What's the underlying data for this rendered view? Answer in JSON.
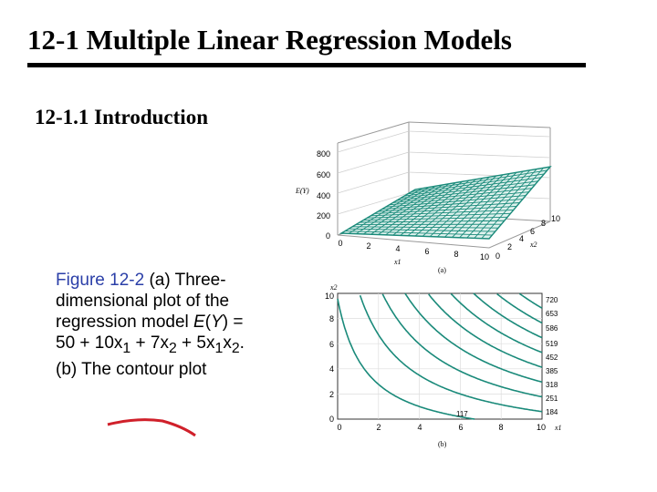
{
  "slide": {
    "title": "12-1 Multiple Linear Regression Models",
    "subtitle": "12-1.1 Introduction"
  },
  "caption": {
    "label": "Figure 12-2",
    "part_a": " (a) Three-dimensional plot of the regression model ",
    "ey": "E",
    "y": "Y",
    "eq1": ") = 50 + 10x",
    "s1": "1",
    "plus": " + 7x",
    "s2": "2",
    "eq2": " + 5x",
    "s3": "1",
    "x2": "x",
    "s4": "2",
    "tail": ". (b) The contour plot"
  },
  "figure_a": {
    "label": "(a)",
    "zlabel": "E(Y)",
    "xlabel": "x1",
    "ylabel": "x2",
    "z_ticks": [
      "800",
      "600",
      "400",
      "200",
      "0"
    ],
    "x_ticks": [
      "0",
      "2",
      "4",
      "6",
      "8",
      "10"
    ],
    "y_ticks": [
      "0",
      "2",
      "4",
      "6",
      "8",
      "10"
    ]
  },
  "figure_b": {
    "label": "(b)",
    "xlabel": "x1",
    "ylabel": "x2",
    "x_ticks": [
      "0",
      "2",
      "4",
      "6",
      "8",
      "10"
    ],
    "y_ticks": [
      "0",
      "2",
      "4",
      "6",
      "8",
      "10"
    ],
    "contour_levels": [
      "720",
      "653",
      "586",
      "519",
      "452",
      "385",
      "318",
      "251",
      "184",
      "117"
    ]
  },
  "colors": {
    "surface": "#1a8a7a",
    "caption_label": "#2b3fa8",
    "underline": "#d0202a"
  }
}
